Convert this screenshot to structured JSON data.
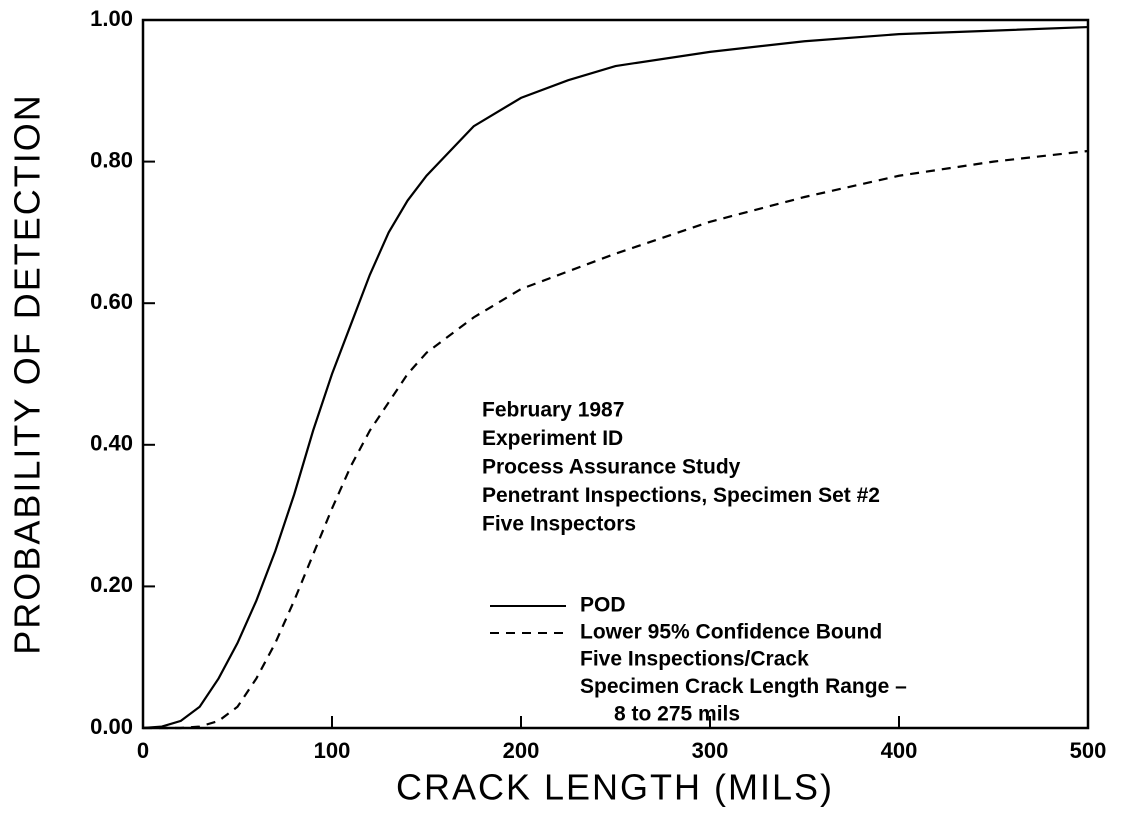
{
  "chart_data": {
    "type": "line",
    "xlabel": "CRACK LENGTH (MILS)",
    "ylabel": "PROBABILITY OF DETECTION",
    "x": [
      0,
      10,
      20,
      30,
      40,
      50,
      60,
      70,
      80,
      90,
      100,
      110,
      120,
      130,
      140,
      150,
      175,
      200,
      225,
      250,
      300,
      350,
      400,
      450,
      500
    ],
    "series": [
      {
        "name": "POD",
        "color": "#000000",
        "style": "solid",
        "values": [
          0,
          0.002,
          0.01,
          0.03,
          0.07,
          0.12,
          0.18,
          0.25,
          0.33,
          0.42,
          0.5,
          0.57,
          0.64,
          0.7,
          0.745,
          0.78,
          0.85,
          0.89,
          0.915,
          0.935,
          0.955,
          0.97,
          0.98,
          0.985,
          0.99
        ]
      },
      {
        "name": "Lower 95% Confidence Bound",
        "color": "#000000",
        "style": "dashed",
        "values": [
          0,
          0,
          0,
          0.002,
          0.01,
          0.03,
          0.07,
          0.12,
          0.18,
          0.245,
          0.31,
          0.37,
          0.42,
          0.46,
          0.5,
          0.53,
          0.58,
          0.62,
          0.645,
          0.67,
          0.715,
          0.75,
          0.78,
          0.8,
          0.815
        ]
      }
    ],
    "xlim": [
      0,
      500
    ],
    "ylim": [
      0,
      1
    ],
    "xticks": [
      0,
      100,
      200,
      300,
      400,
      500
    ],
    "yticks": [
      {
        "value": 0,
        "label": "0.00"
      },
      {
        "value": 0.2,
        "label": "0.20"
      },
      {
        "value": 0.4,
        "label": "0.40"
      },
      {
        "value": 0.6,
        "label": "0.60"
      },
      {
        "value": 0.8,
        "label": "0.80"
      },
      {
        "value": 1,
        "label": "1.00"
      }
    ],
    "annotations": [
      "February 1987",
      "Experiment ID",
      "Process Assurance Study",
      "Penetrant Inspections, Specimen Set #2",
      "Five Inspectors"
    ],
    "legend_notes": [
      "Five Inspections/Crack",
      "Specimen Crack Length Range –",
      "8 to 275 mils"
    ]
  }
}
